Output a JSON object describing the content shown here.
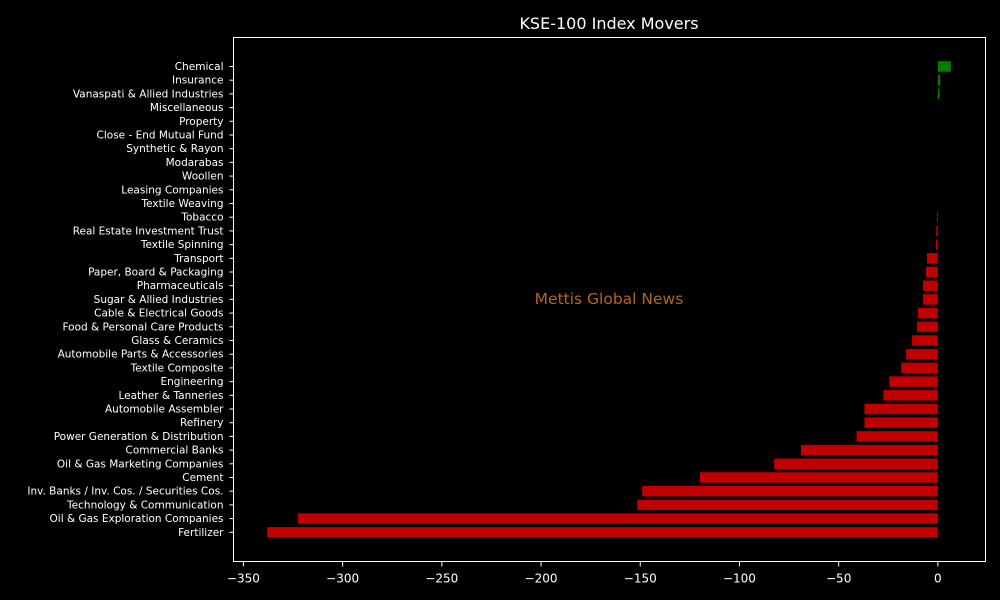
{
  "chart_data": {
    "type": "bar",
    "orientation": "horizontal",
    "title": "KSE-100 Index Movers",
    "xlabel": "",
    "ylabel": "",
    "xlim": [
      -355,
      24
    ],
    "xticks": [
      -350,
      -300,
      -250,
      -200,
      -150,
      -100,
      -50,
      0
    ],
    "xtick_labels": [
      "−350",
      "−300",
      "−250",
      "−200",
      "−150",
      "−100",
      "−50",
      "0"
    ],
    "grid": false,
    "colors": {
      "positive": "#008000",
      "negative": "#c00000",
      "background": "#000000",
      "text": "#ffffff"
    },
    "categories": [
      "Chemical",
      "Insurance",
      "Vanaspati & Allied Industries",
      "Miscellaneous",
      "Property",
      "Close - End Mutual Fund",
      "Synthetic & Rayon",
      "Modarabas",
      "Woollen",
      "Leasing Companies",
      "Textile Weaving",
      "Tobacco",
      "Real Estate Investment Trust",
      "Textile Spinning",
      "Transport",
      "Paper, Board & Packaging",
      "Pharmaceuticals",
      "Sugar & Allied Industries",
      "Cable & Electrical Goods",
      "Food & Personal Care Products",
      "Glass & Ceramics",
      "Automobile Parts & Accessories",
      "Textile Composite",
      "Engineering",
      "Leather & Tanneries",
      "Automobile Assembler",
      "Refinery",
      "Power Generation & Distribution",
      "Commercial Banks",
      "Oil & Gas Marketing Companies",
      "Cement",
      "Inv. Banks / Inv. Cos. / Securities Cos.",
      "Technology & Communication",
      "Oil & Gas Exploration Companies",
      "Fertilizer"
    ],
    "values": [
      6.5,
      1.2,
      0.8,
      0,
      0,
      0,
      0,
      0,
      0,
      0,
      0,
      -0.5,
      -0.8,
      -1.0,
      -5.5,
      -6.0,
      -7.5,
      -7.5,
      -10.0,
      -10.5,
      -13.0,
      -16.0,
      -18.5,
      -24.5,
      -27.5,
      -37.0,
      -37.0,
      -41.0,
      -69.0,
      -82.5,
      -120.0,
      -149.0,
      -151.5,
      -322.5,
      -338.0
    ]
  },
  "watermark": {
    "text": "Mettis Global News",
    "color": "#b5651d"
  }
}
